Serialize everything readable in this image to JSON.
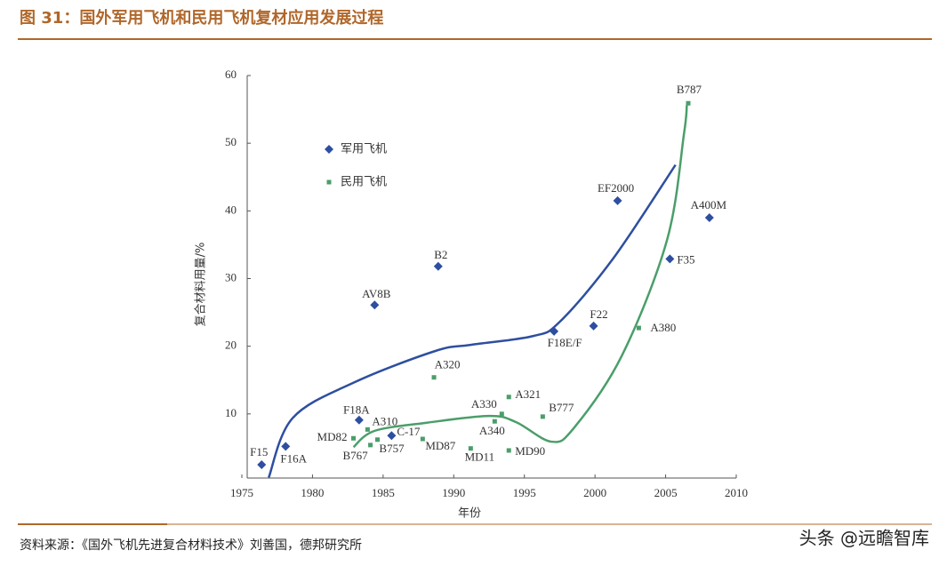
{
  "title": "图 31：国外军用飞机和民用飞机复材应用发展过程",
  "source": "资料来源：《国外飞机先进复合材料技术》刘善国，德邦研究所",
  "watermark": "头条 @远瞻智库",
  "chart_data": {
    "type": "scatter",
    "xlabel": "年份",
    "ylabel": "复合材料用量/%",
    "xlim": [
      1975,
      2010
    ],
    "xticks": [
      1975,
      1980,
      1985,
      1990,
      1995,
      2000,
      2005,
      2010
    ],
    "ylim": [
      0,
      60
    ],
    "yticks": [
      10,
      20,
      30,
      40,
      50,
      60
    ],
    "series": [
      {
        "name": "军用飞机",
        "color": "#2e4fa0",
        "marker": "diamond",
        "labels": [
          "F15",
          "F16A",
          "F18A",
          "AV8B",
          "C-17",
          "B2",
          "F18E/F",
          "F22",
          "EF2000",
          "F35",
          "A400M"
        ],
        "x": [
          1976.4,
          1978.1,
          1983.3,
          1984.4,
          1985.6,
          1988.9,
          1997.1,
          1999.9,
          2001.6,
          2005.3,
          2008.1
        ],
        "values": [
          2.5,
          5.2,
          9.1,
          26.1,
          6.8,
          31.8,
          22.2,
          23,
          41.5,
          32.9,
          39
        ],
        "trend": {
          "x": [
            1976.9,
            1978.6,
            1983,
            1988.7,
            1991.2,
            1995.6,
            1997.5,
            2001.3,
            2005.7
          ],
          "values": [
            0.6,
            9.4,
            14.7,
            19.3,
            20.2,
            21.5,
            23.6,
            33,
            46.8
          ]
        }
      },
      {
        "name": "民用飞机",
        "color": "#4a9e6a",
        "marker": "square",
        "labels": [
          "MD82",
          "A310",
          "B767",
          "B757",
          "MD87",
          "A320",
          "MD11",
          "A330",
          "A340",
          "A321",
          "MD90",
          "B777",
          "A380",
          "B787"
        ],
        "x": [
          1982.9,
          1983.9,
          1984.1,
          1984.6,
          1987.8,
          1988.6,
          1991.2,
          1993.4,
          1992.9,
          1993.9,
          1993.9,
          1996.3,
          2003.1,
          2006.6
        ],
        "values": [
          6.4,
          7.7,
          5.4,
          6.2,
          6.3,
          15.4,
          4.9,
          10,
          8.9,
          12.5,
          4.6,
          9.6,
          22.7,
          55.9
        ],
        "trend": {
          "x": [
            1982.9,
            1984.4,
            1988.1,
            1992.5,
            1994.4,
            1996.9,
            1998.5,
            2001.9,
            2005.1,
            2006.3,
            2006.5
          ],
          "values": [
            5.1,
            7.5,
            8.7,
            9.7,
            8.8,
            5.9,
            7.9,
            18.6,
            35.7,
            51.4,
            55.6
          ]
        }
      }
    ]
  }
}
